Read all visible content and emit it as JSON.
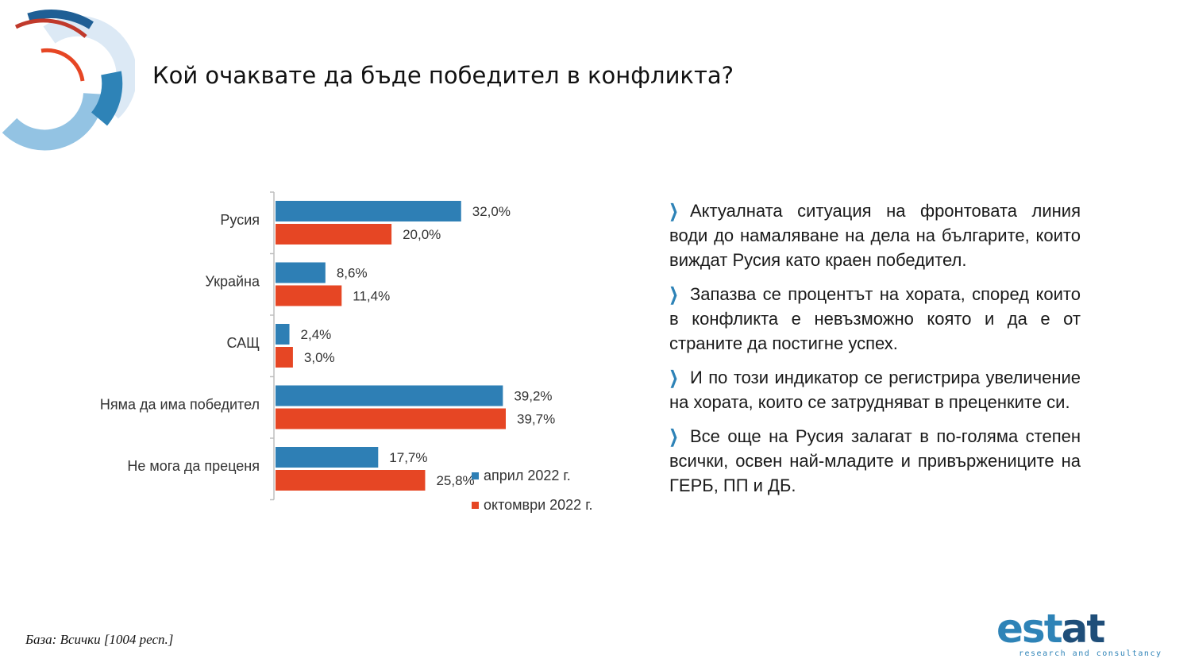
{
  "title": "Кой очаквате да бъде победител в конфликта?",
  "chart_data": {
    "type": "bar",
    "orientation": "horizontal",
    "categories": [
      "Русия",
      "Украйна",
      "САЩ",
      "Няма да има победител",
      "Не мога да преценя"
    ],
    "series": [
      {
        "name": "април 2022 г.",
        "color": "#2e7fb5",
        "values": [
          32.0,
          8.6,
          2.4,
          39.2,
          17.7
        ],
        "labels": [
          "32,0%",
          "8,6%",
          "2,4%",
          "39,2%",
          "17,7%"
        ]
      },
      {
        "name": "октомври 2022 г.",
        "color": "#e64624",
        "values": [
          20.0,
          11.4,
          3.0,
          39.7,
          25.8
        ],
        "labels": [
          "20,0%",
          "11,4%",
          "3,0%",
          "39,7%",
          "25,8%"
        ]
      }
    ],
    "xlim": [
      0,
      42
    ],
    "grid": false,
    "legend": "bottom-right"
  },
  "bullets": [
    "Актуалната ситуация на фронтовата линия води до намаляване на дела на българите, които виждат Русия като краен победител.",
    "Запазва се процентът на хората, според които в конфликта е невъзможно която и да е от страните да постигне успех.",
    "И по този индикатор се регистрира увеличение на хората, които се затрудняват в преценките си.",
    "Все още на Русия залагат в по-голяма степен всички, освен най-младите и привържениците на ГЕРБ, ПП и ДБ."
  ],
  "bullet_icon": "chevron-right-icon",
  "base_note": "База: Всички [1004 респ.]",
  "logo": {
    "letters": [
      "e",
      "s",
      "t",
      "a",
      "t"
    ],
    "tagline": "research and consultancy"
  },
  "colors": {
    "accent_blue": "#2e83b7",
    "accent_red": "#e64624",
    "dark_blue": "#1f4e79"
  }
}
